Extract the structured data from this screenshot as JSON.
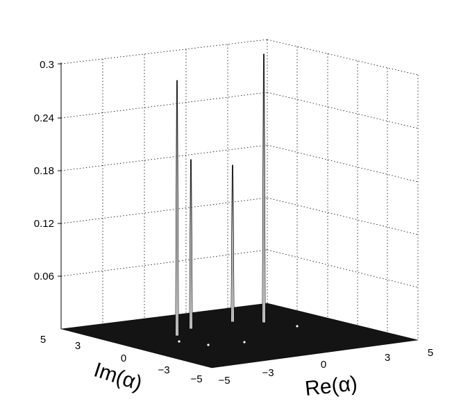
{
  "chart_data": {
    "type": "surface3d",
    "title": "",
    "xlabel": "Re(α)",
    "ylabel": "Im(α)",
    "zlabel": "",
    "xlim": [
      -5,
      5
    ],
    "ylim": [
      -5,
      5
    ],
    "zlim": [
      0,
      0.3
    ],
    "x_ticks": [
      "−5",
      "−3",
      "0",
      "3",
      "5"
    ],
    "x_tick_values": [
      -5,
      -3,
      0,
      3,
      5
    ],
    "y_ticks": [
      "5",
      "3",
      "0",
      "−3",
      "−5"
    ],
    "y_tick_values": [
      5,
      3,
      0,
      -3,
      -5
    ],
    "z_ticks": [
      "0.06",
      "0.12",
      "0.18",
      "0.24",
      "0.3"
    ],
    "z_tick_values": [
      0.06,
      0.12,
      0.18,
      0.24,
      0.3
    ],
    "grid": true,
    "surface_color": "#141414",
    "peak_color": "#ffffff",
    "peaks": [
      {
        "x": -3,
        "y": 2,
        "z": 0.28
      },
      {
        "x": -2,
        "y": 2,
        "z": 0.19
      },
      {
        "x": 1,
        "y": 3,
        "z": 0.19
      },
      {
        "x": 2,
        "y": 4,
        "z": 0.3
      }
    ]
  }
}
